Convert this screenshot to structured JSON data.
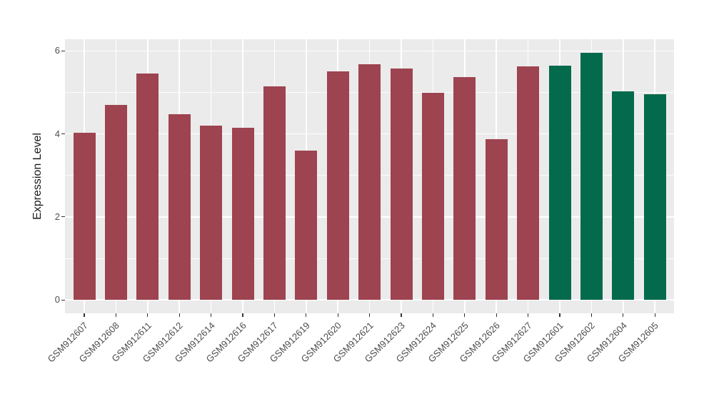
{
  "chart_data": {
    "type": "bar",
    "title": "",
    "xlabel": "",
    "ylabel": "Expression Level",
    "categories": [
      "GSM912607",
      "GSM912608",
      "GSM912611",
      "GSM912612",
      "GSM912614",
      "GSM912616",
      "GSM912617",
      "GSM912619",
      "GSM912620",
      "GSM912621",
      "GSM912623",
      "GSM912624",
      "GSM912625",
      "GSM912626",
      "GSM912627",
      "GSM912601",
      "GSM912602",
      "GSM912604",
      "GSM912605"
    ],
    "values": [
      4.03,
      4.7,
      5.46,
      4.48,
      4.2,
      4.15,
      5.14,
      3.59,
      5.5,
      5.68,
      5.58,
      5.0,
      5.37,
      3.88,
      5.63,
      5.64,
      5.95,
      5.02,
      4.96
    ],
    "groups": [
      "maroon",
      "maroon",
      "maroon",
      "maroon",
      "maroon",
      "maroon",
      "maroon",
      "maroon",
      "maroon",
      "maroon",
      "maroon",
      "maroon",
      "maroon",
      "maroon",
      "maroon",
      "green",
      "green",
      "green",
      "green"
    ],
    "group_colors": {
      "maroon": "#9E4350",
      "green": "#046A4C"
    },
    "yticks": [
      0,
      2,
      4,
      6
    ],
    "minor_yticks": [
      1,
      3,
      5
    ],
    "ylim": [
      -0.33,
      6.28
    ],
    "grid": true,
    "legend": "none",
    "panel_bg": "#EBEBEB",
    "grid_color": "#FFFFFF",
    "tick_color": "#333333",
    "tick_label_color": "#4D4D4D",
    "axis_title_color": "#1A1A1A"
  }
}
